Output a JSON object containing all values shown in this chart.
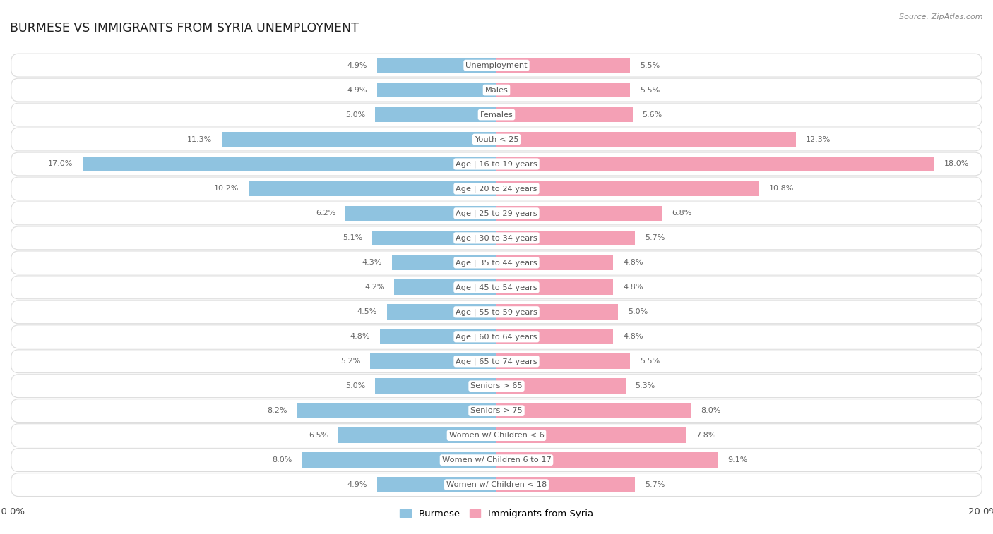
{
  "title": "BURMESE VS IMMIGRANTS FROM SYRIA UNEMPLOYMENT",
  "source": "Source: ZipAtlas.com",
  "categories": [
    "Unemployment",
    "Males",
    "Females",
    "Youth < 25",
    "Age | 16 to 19 years",
    "Age | 20 to 24 years",
    "Age | 25 to 29 years",
    "Age | 30 to 34 years",
    "Age | 35 to 44 years",
    "Age | 45 to 54 years",
    "Age | 55 to 59 years",
    "Age | 60 to 64 years",
    "Age | 65 to 74 years",
    "Seniors > 65",
    "Seniors > 75",
    "Women w/ Children < 6",
    "Women w/ Children 6 to 17",
    "Women w/ Children < 18"
  ],
  "burmese": [
    4.9,
    4.9,
    5.0,
    11.3,
    17.0,
    10.2,
    6.2,
    5.1,
    4.3,
    4.2,
    4.5,
    4.8,
    5.2,
    5.0,
    8.2,
    6.5,
    8.0,
    4.9
  ],
  "syria": [
    5.5,
    5.5,
    5.6,
    12.3,
    18.0,
    10.8,
    6.8,
    5.7,
    4.8,
    4.8,
    5.0,
    4.8,
    5.5,
    5.3,
    8.0,
    7.8,
    9.1,
    5.7
  ],
  "burmese_color": "#8fc3e0",
  "syria_color": "#f4a0b5",
  "row_bg": "#f5f5f5",
  "row_border": "#dcdcdc",
  "max_val": 20.0,
  "label_color": "#666666",
  "center_label_color": "#555555",
  "legend_burmese": "Burmese",
  "legend_syria": "Immigrants from Syria"
}
